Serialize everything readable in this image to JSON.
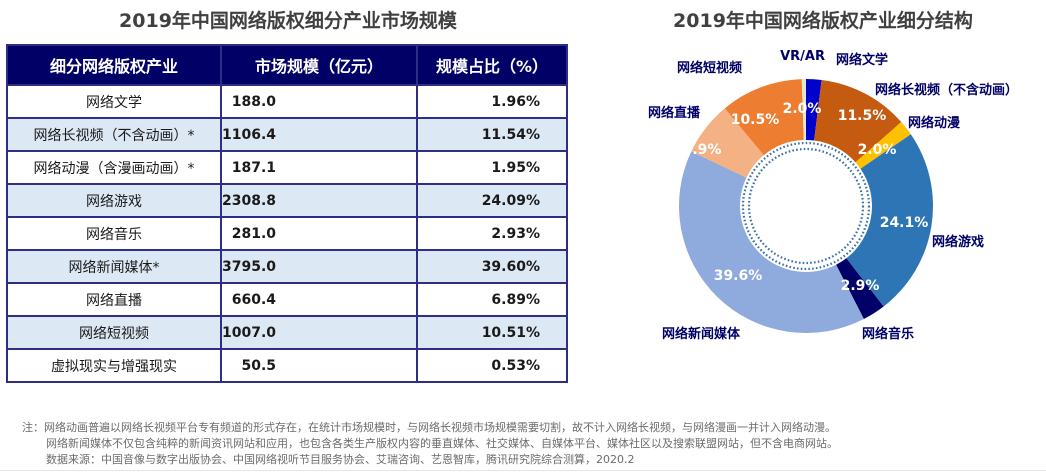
{
  "left": {
    "title": "2019年中国网络版权细分产业市场规模",
    "table": {
      "headers": [
        "细分网络版权产业",
        "市场规模（亿元）",
        "规模占比（%）"
      ],
      "rows": [
        {
          "name": "网络文学",
          "size": "188.0",
          "pct": "1.96%"
        },
        {
          "name": "网络长视频（不含动画）*",
          "size": "1106.4",
          "pct": "11.54%"
        },
        {
          "name": "网络动漫（含漫画动画）*",
          "size": "187.1",
          "pct": "1.95%"
        },
        {
          "name": "网络游戏",
          "size": "2308.8",
          "pct": "24.09%"
        },
        {
          "name": "网络音乐",
          "size": "281.0",
          "pct": "2.93%"
        },
        {
          "name": "网络新闻媒体*",
          "size": "3795.0",
          "pct": "39.60%"
        },
        {
          "name": "网络直播",
          "size": "660.4",
          "pct": "6.89%"
        },
        {
          "name": "网络短视频",
          "size": "1007.0",
          "pct": "10.51%"
        },
        {
          "name": "虚拟现实与增强现实",
          "size": "50.5",
          "pct": "0.53%"
        }
      ]
    }
  },
  "chart_data": {
    "type": "pie",
    "variant": "donut",
    "title": "2019年中国网络版权产业细分结构",
    "start": "12 o'clock, clockwise",
    "slices": [
      {
        "label": "网络文学",
        "value": 1.96,
        "display": "2.0%",
        "color": "#0000cc"
      },
      {
        "label": "网络长视频（不含动画）",
        "value": 11.54,
        "display": "11.5%",
        "color": "#c55a11"
      },
      {
        "label": "网络动漫",
        "value": 1.95,
        "display": "2.0%",
        "color": "#ffc000"
      },
      {
        "label": "网络游戏",
        "value": 24.09,
        "display": "24.1%",
        "color": "#2e75b6"
      },
      {
        "label": "网络音乐",
        "value": 2.93,
        "display": "2.9%",
        "color": "#000066"
      },
      {
        "label": "网络新闻媒体",
        "value": 39.6,
        "display": "39.6%",
        "color": "#8faadc"
      },
      {
        "label": "网络直播",
        "value": 6.89,
        "display": "6.9%",
        "color": "#f4b183"
      },
      {
        "label": "网络短视频",
        "value": 10.51,
        "display": "10.5%",
        "color": "#ed7d31"
      },
      {
        "label": "VR/AR",
        "value": 0.53,
        "display": "",
        "color": "#e2e7c9"
      }
    ]
  },
  "notes": [
    "注：网络动画普遍以网络长视频平台专有频道的形式存在，在统计市场规模时，与网络长视频市场规模需要切割，故不计入网络长视频，与网络漫画一并计入网络动漫。",
    "网络新闻媒体不仅包含纯粹的新闻资讯网站和应用，也包含各类生产版权内容的垂直媒体、社交媒体、自媒体平台、媒体社区以及搜索联盟网站，但不含电商网站。",
    "数据来源：中国音像与数字出版协会、中国网络视听节目服务协会、艾瑞咨询、艺恩智库，腾讯研究院综合测算，2020.2"
  ]
}
